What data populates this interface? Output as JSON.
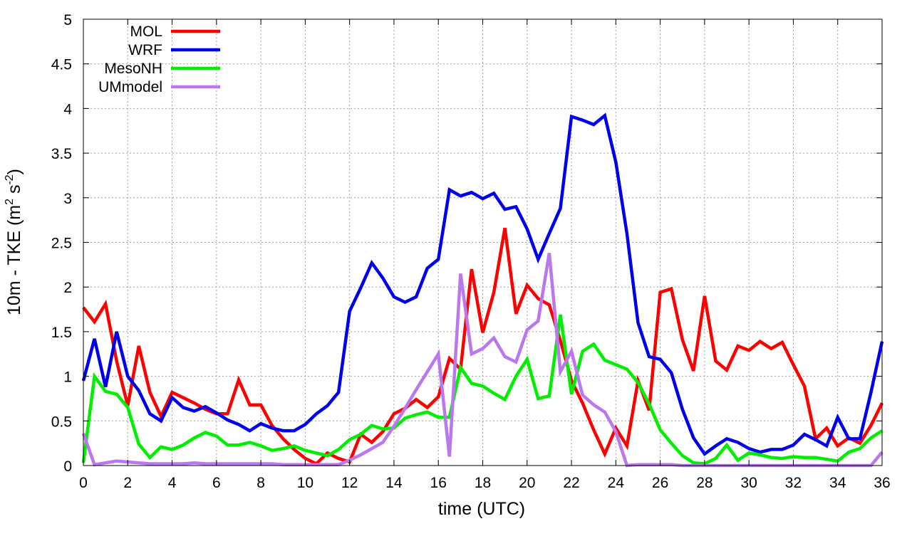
{
  "chart_data": {
    "type": "line",
    "xlabel": "time (UTC)",
    "ylabel_main": "10m - TKE (m",
    "ylabel_sup1": "2",
    "ylabel_mid": " s",
    "ylabel_sup2": "-2",
    "ylabel_end": ")",
    "xlim": [
      0,
      36
    ],
    "ylim": [
      0,
      5
    ],
    "x_ticks": [
      0,
      2,
      4,
      6,
      8,
      10,
      12,
      14,
      16,
      18,
      20,
      22,
      24,
      26,
      28,
      30,
      32,
      34,
      36
    ],
    "y_ticks": [
      0,
      0.5,
      1,
      1.5,
      2,
      2.5,
      3,
      3.5,
      4,
      4.5,
      5
    ],
    "x_tick_labels": [
      "0",
      "2",
      "4",
      "6",
      "8",
      "10",
      "12",
      "14",
      "16",
      "18",
      "20",
      "22",
      "24",
      "26",
      "28",
      "30",
      "32",
      "34",
      "36"
    ],
    "y_tick_labels": [
      "0",
      "0.5",
      "1",
      "1.5",
      "2",
      "2.5",
      "3",
      "3.5",
      "4",
      "4.5",
      "5"
    ],
    "grid": true,
    "legend_position": "top-left",
    "x": [
      0,
      0.5,
      1,
      1.5,
      2,
      2.5,
      3,
      3.5,
      4,
      4.5,
      5,
      5.5,
      6,
      6.5,
      7,
      7.5,
      8,
      8.5,
      9,
      9.5,
      10,
      10.5,
      11,
      11.5,
      12,
      12.5,
      13,
      13.5,
      14,
      14.5,
      15,
      15.5,
      16,
      16.5,
      17,
      17.5,
      18,
      18.5,
      19,
      19.5,
      20,
      20.5,
      21,
      21.5,
      22,
      22.5,
      23,
      23.5,
      24,
      24.5,
      25,
      25.5,
      26,
      26.5,
      27,
      27.5,
      28,
      28.5,
      29,
      29.5,
      30,
      30.5,
      31,
      31.5,
      32,
      32.5,
      33,
      33.5,
      34,
      34.5,
      35,
      35.5,
      36
    ],
    "series": [
      {
        "name": "MOL",
        "color": "#ff0000",
        "values": [
          1.77,
          1.61,
          1.81,
          1.17,
          0.67,
          1.34,
          0.82,
          0.55,
          0.82,
          0.76,
          0.7,
          0.63,
          0.58,
          0.58,
          0.96,
          0.68,
          0.68,
          0.45,
          0.3,
          0.18,
          0.08,
          0.02,
          0.14,
          0.08,
          0.04,
          0.35,
          0.26,
          0.38,
          0.58,
          0.64,
          0.74,
          0.65,
          0.77,
          1.2,
          1.08,
          2.2,
          1.49,
          1.94,
          2.66,
          1.7,
          2.02,
          1.87,
          1.8,
          1.4,
          0.95,
          0.7,
          0.4,
          0.13,
          0.42,
          0.22,
          0.95,
          0.62,
          1.94,
          1.98,
          1.41,
          1.06,
          1.9,
          1.17,
          1.07,
          1.34,
          1.29,
          1.39,
          1.31,
          1.38,
          1.13,
          0.89,
          0.3,
          0.42,
          0.22,
          0.31,
          0.25,
          0.45,
          0.7
        ]
      },
      {
        "name": "WRF",
        "color": "#0000ee",
        "values": [
          0.95,
          1.42,
          0.88,
          1.5,
          1.0,
          0.84,
          0.58,
          0.5,
          0.76,
          0.65,
          0.61,
          0.66,
          0.59,
          0.51,
          0.46,
          0.39,
          0.47,
          0.42,
          0.39,
          0.39,
          0.46,
          0.58,
          0.67,
          0.82,
          1.73,
          1.99,
          2.27,
          2.1,
          1.89,
          1.83,
          1.89,
          2.21,
          2.31,
          3.09,
          3.02,
          3.06,
          2.99,
          3.05,
          2.87,
          2.9,
          2.65,
          2.31,
          2.6,
          2.88,
          3.91,
          3.87,
          3.82,
          3.92,
          3.4,
          2.6,
          1.6,
          1.22,
          1.19,
          1.04,
          0.63,
          0.31,
          0.13,
          0.22,
          0.3,
          0.26,
          0.19,
          0.15,
          0.18,
          0.18,
          0.23,
          0.35,
          0.29,
          0.22,
          0.54,
          0.3,
          0.3,
          0.82,
          1.39
        ]
      },
      {
        "name": "MesoNH",
        "color": "#00ee00",
        "values": [
          0.03,
          1.0,
          0.83,
          0.8,
          0.65,
          0.24,
          0.09,
          0.21,
          0.18,
          0.23,
          0.31,
          0.37,
          0.33,
          0.23,
          0.23,
          0.26,
          0.22,
          0.17,
          0.19,
          0.22,
          0.17,
          0.14,
          0.11,
          0.18,
          0.29,
          0.35,
          0.45,
          0.41,
          0.42,
          0.53,
          0.57,
          0.6,
          0.54,
          0.54,
          1.1,
          0.92,
          0.89,
          0.81,
          0.74,
          1.0,
          1.19,
          0.75,
          0.78,
          1.69,
          0.8,
          1.28,
          1.36,
          1.18,
          1.13,
          1.08,
          0.93,
          0.69,
          0.4,
          0.25,
          0.11,
          0.03,
          0.02,
          0.08,
          0.23,
          0.06,
          0.14,
          0.12,
          0.09,
          0.08,
          0.1,
          0.09,
          0.09,
          0.07,
          0.05,
          0.15,
          0.19,
          0.31,
          0.39
        ]
      },
      {
        "name": "UMmodel",
        "color": "#bb77ee",
        "values": [
          0.36,
          0.01,
          0.03,
          0.05,
          0.04,
          0.03,
          0.02,
          0.02,
          0.02,
          0.02,
          0.03,
          0.02,
          0.02,
          0.02,
          0.02,
          0.02,
          0.02,
          0.02,
          0.01,
          0.01,
          0.01,
          0.01,
          0.01,
          0.01,
          0.06,
          0.12,
          0.19,
          0.26,
          0.44,
          0.64,
          0.85,
          1.05,
          1.25,
          0.1,
          2.15,
          1.25,
          1.31,
          1.43,
          1.22,
          1.16,
          1.52,
          1.62,
          2.38,
          1.05,
          1.28,
          0.79,
          0.68,
          0.6,
          0.38,
          0.0,
          0.01,
          0.01,
          0.01,
          0.01,
          0.0,
          0.0,
          0.0,
          0.0,
          0.0,
          0.0,
          0.0,
          0.0,
          0.0,
          0.0,
          0.0,
          0.0,
          0.0,
          0.0,
          0.0,
          0.0,
          0.0,
          0.0,
          0.15
        ]
      }
    ]
  }
}
